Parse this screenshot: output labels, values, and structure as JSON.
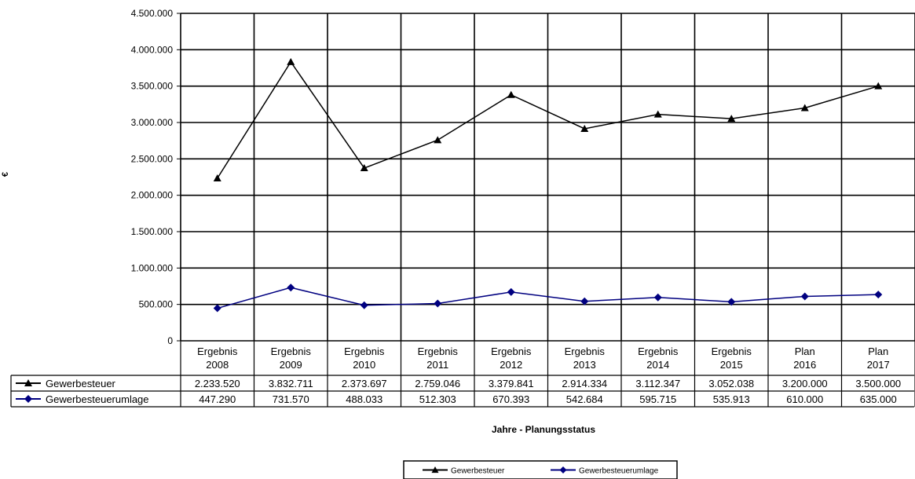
{
  "chart_data": {
    "type": "line",
    "title": "",
    "xlabel": "Jahre - Planungsstatus",
    "ylabel": "€",
    "ylim": [
      0,
      4500000
    ],
    "yticks": [
      {
        "value": 0,
        "label": "0"
      },
      {
        "value": 500000,
        "label": "500.000"
      },
      {
        "value": 1000000,
        "label": "1.000.000"
      },
      {
        "value": 1500000,
        "label": "1.500.000"
      },
      {
        "value": 2000000,
        "label": "2.000.000"
      },
      {
        "value": 2500000,
        "label": "2.500.000"
      },
      {
        "value": 3000000,
        "label": "3.000.000"
      },
      {
        "value": 3500000,
        "label": "3.500.000"
      },
      {
        "value": 4000000,
        "label": "4.000.000"
      },
      {
        "value": 4500000,
        "label": "4.500.000"
      }
    ],
    "grid": true,
    "legend_position": "bottom",
    "categories": [
      {
        "line1": "Ergebnis",
        "line2": "2008"
      },
      {
        "line1": "Ergebnis",
        "line2": "2009"
      },
      {
        "line1": "Ergebnis",
        "line2": "2010"
      },
      {
        "line1": "Ergebnis",
        "line2": "2011"
      },
      {
        "line1": "Ergebnis",
        "line2": "2012"
      },
      {
        "line1": "Ergebnis",
        "line2": "2013"
      },
      {
        "line1": "Ergebnis",
        "line2": "2014"
      },
      {
        "line1": "Ergebnis",
        "line2": "2015"
      },
      {
        "line1": "Plan",
        "line2": "2016"
      },
      {
        "line1": "Plan",
        "line2": "2017"
      }
    ],
    "series": [
      {
        "name": "Gewerbesteuer",
        "color": "#000000",
        "marker": "triangle",
        "values": [
          2233520,
          3832711,
          2373697,
          2759046,
          3379841,
          2914334,
          3112347,
          3052038,
          3200000,
          3500000
        ],
        "labels": [
          "2.233.520",
          "3.832.711",
          "2.373.697",
          "2.759.046",
          "3.379.841",
          "2.914.334",
          "3.112.347",
          "3.052.038",
          "3.200.000",
          "3.500.000"
        ]
      },
      {
        "name": "Gewerbesteuerumlage",
        "color": "#000080",
        "marker": "diamond",
        "values": [
          447290,
          731570,
          488033,
          512303,
          670393,
          542684,
          595715,
          535913,
          610000,
          635000
        ],
        "labels": [
          "447.290",
          "731.570",
          "488.033",
          "512.303",
          "670.393",
          "542.684",
          "595.715",
          "535.913",
          "610.000",
          "635.000"
        ]
      }
    ]
  }
}
